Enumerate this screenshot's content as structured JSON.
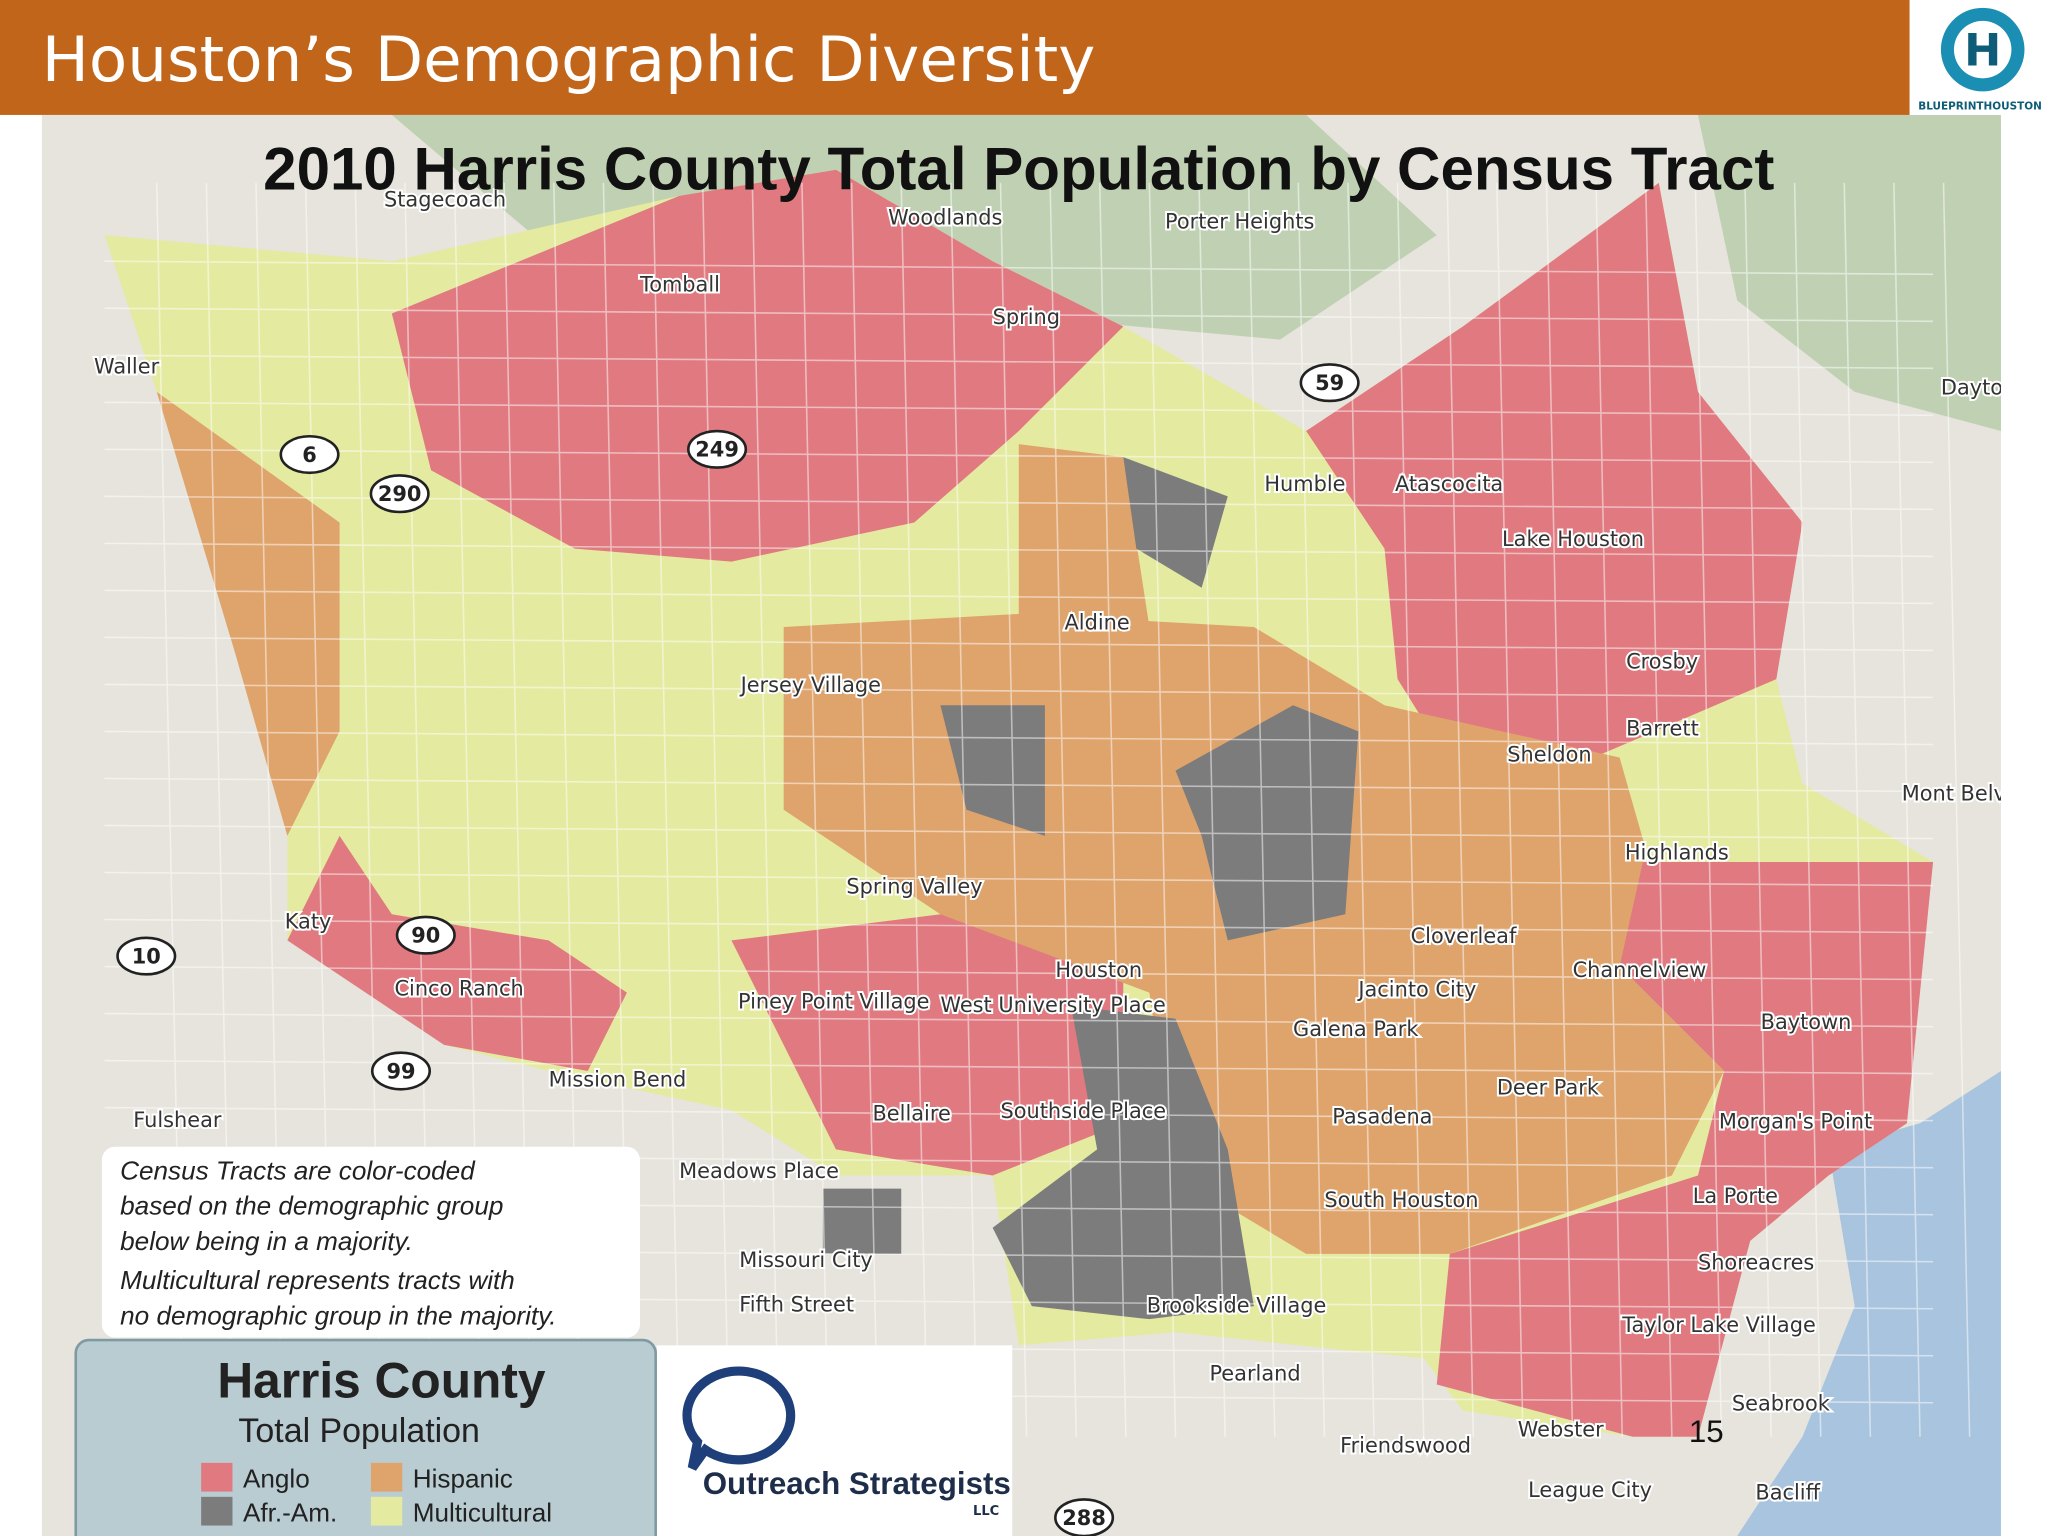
{
  "header": {
    "title": "Houston’s Demographic Diversity",
    "logo_text": "BLUEPRINTHOUSTON"
  },
  "map": {
    "title": "2010 Harris County Total Population by Census Tract",
    "places": [
      "Woodlands",
      "Stagecoach",
      "Porter Heights",
      "Tomball",
      "Spring",
      "Waller",
      "Humble",
      "Atascocita",
      "Lake Houston",
      "Crosby",
      "Barrett",
      "Sheldon",
      "Aldine",
      "Jersey Village",
      "Katy",
      "Cinco Ranch",
      "Mission Bend",
      "Fulshear",
      "Spring Valley",
      "Piney Point Village",
      "West University Place",
      "Houston",
      "Bellaire",
      "Southside Place",
      "Meadows Place",
      "Missouri City",
      "Fifth Street",
      "Brookside Village",
      "Pearland",
      "Friendswood",
      "Webster",
      "League City",
      "Bacliff",
      "Seabrook",
      "Taylor Lake Village",
      "Shoreacres",
      "La Porte",
      "Morgan's Point",
      "Deer Park",
      "Pasadena",
      "South Houston",
      "Galena Park",
      "Jacinto City",
      "Cloverleaf",
      "Channelview",
      "Baytown",
      "Highlands",
      "Mont Belvieu",
      "Dayton"
    ],
    "highways": [
      "59",
      "249",
      "290",
      "6",
      "90",
      "10",
      "99",
      "288"
    ]
  },
  "note": [
    "Census Tracts are color-coded",
    "based on the demographic group",
    "below being in a majority.",
    "Multicultural represents tracts with",
    "no demographic group in the majority."
  ],
  "legend": {
    "title": "Harris County",
    "subtitle": "Total Population",
    "items": [
      {
        "label": "Anglo",
        "color": "#e07a80"
      },
      {
        "label": "Hispanic",
        "color": "#dfa46c"
      },
      {
        "label": "Afr.-Am.",
        "color": "#7c7c7c"
      },
      {
        "label": "Multicultural",
        "color": "#e4eba0"
      }
    ]
  },
  "sponsor": {
    "name": "Outreach Strategists",
    "suffix": "LLC"
  },
  "page_number": 15
}
